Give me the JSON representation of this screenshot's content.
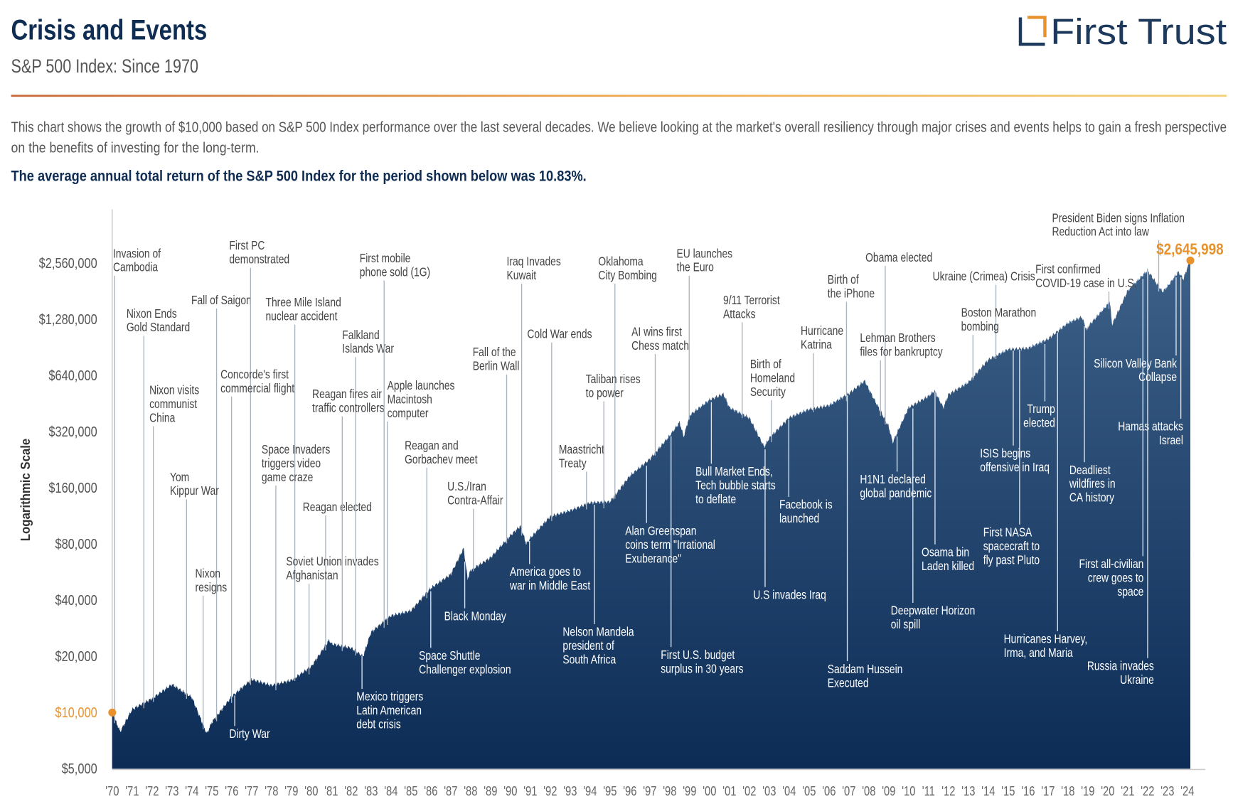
{
  "header": {
    "title": "Crisis and Events",
    "subtitle": "S&P 500 Index: Since 1970",
    "description_lines": [
      "This chart shows the growth of $10,000 based on S&P 500 Index performance over the last several decades. We believe looking at the market's overall resiliency through major crises and events helps to gain a fresh perspective",
      "on the benefits of investing for the long-term."
    ],
    "highlight": "The average annual total return of the S&P 500 Index for the period shown below was 10.83%.",
    "logo_text": "First Trust"
  },
  "colors": {
    "navy": "#0f2d52",
    "area_top": "#3d6189",
    "area_bottom": "#0c2c56",
    "accent_orange": "#e8922e",
    "text_gray": "#555555"
  },
  "chart_data": {
    "type": "area",
    "title": "Crisis and Events",
    "ylabel": "Logarithmic Scale",
    "yscale": "log",
    "ylim": [
      5000,
      2645998
    ],
    "y_ticks": [
      5000,
      10000,
      20000,
      40000,
      80000,
      160000,
      320000,
      640000,
      1280000,
      2560000
    ],
    "y_tick_labels": [
      "$5,000",
      "$10,000",
      "$20,000",
      "$40,000",
      "$80,000",
      "$160,000",
      "$320,000",
      "$640,000",
      "$1,280,000",
      "$2,560,000"
    ],
    "x_tick_labels": [
      "'70",
      "'71",
      "'72",
      "'73",
      "'74",
      "'75",
      "'76",
      "'77",
      "'78",
      "'79",
      "'80",
      "'81",
      "'82",
      "'83",
      "'84",
      "'85",
      "'86",
      "'87",
      "'88",
      "'89",
      "'90",
      "'91",
      "'92",
      "'93",
      "'94",
      "'95",
      "'96",
      "'97",
      "'98",
      "'99",
      "'00",
      "'01",
      "'02",
      "'03",
      "'04",
      "'05",
      "'06",
      "'07",
      "'08",
      "'09",
      "'10",
      "'11",
      "'12",
      "'13",
      "'14",
      "'15",
      "'16",
      "'17",
      "'18",
      "'19",
      "'20",
      "'21",
      "'22",
      "'23",
      "'24"
    ],
    "grid": false,
    "start_label": "$10,000",
    "end_label": "$2,645,998",
    "points": [
      [
        1970.0,
        10000
      ],
      [
        1970.4,
        7900
      ],
      [
        1971.0,
        10400
      ],
      [
        1972.0,
        11887
      ],
      [
        1973.0,
        14146
      ],
      [
        1974.0,
        12066
      ],
      [
        1974.75,
        7700
      ],
      [
        1975.0,
        8869
      ],
      [
        1976.0,
        12168
      ],
      [
        1977.0,
        15064
      ],
      [
        1978.0,
        13979
      ],
      [
        1979.0,
        14902
      ],
      [
        1980.0,
        17644
      ],
      [
        1980.9,
        24500
      ],
      [
        1981.0,
        23361
      ],
      [
        1982.0,
        22216
      ],
      [
        1982.6,
        20000
      ],
      [
        1983.0,
        26971
      ],
      [
        1984.0,
        33039
      ],
      [
        1985.0,
        35121
      ],
      [
        1986.0,
        46430
      ],
      [
        1987.0,
        55020
      ],
      [
        1987.65,
        76000
      ],
      [
        1987.85,
        52000
      ],
      [
        1988.0,
        57881
      ],
      [
        1989.0,
        67605
      ],
      [
        1990.0,
        88900
      ],
      [
        1990.5,
        100000
      ],
      [
        1990.8,
        80000
      ],
      [
        1991.0,
        86144
      ],
      [
        1992.0,
        112418
      ],
      [
        1993.0,
        120962
      ],
      [
        1994.0,
        133179
      ],
      [
        1995.0,
        134910
      ],
      [
        1996.0,
        185636
      ],
      [
        1997.0,
        228332
      ],
      [
        1998.0,
        304595
      ],
      [
        1998.5,
        360000
      ],
      [
        1998.7,
        300000
      ],
      [
        1999.0,
        391709
      ],
      [
        2000.0,
        473968
      ],
      [
        2000.7,
        510000
      ],
      [
        2001.0,
        430837
      ],
      [
        2002.0,
        379567
      ],
      [
        2002.75,
        265000
      ],
      [
        2003.0,
        295683
      ],
      [
        2004.0,
        380544
      ],
      [
        2005.0,
        422023
      ],
      [
        2006.0,
        442702
      ],
      [
        2007.0,
        512649
      ],
      [
        2007.8,
        600000
      ],
      [
        2008.0,
        540845
      ],
      [
        2009.0,
        340732
      ],
      [
        2009.2,
        280000
      ],
      [
        2010.0,
        431026
      ],
      [
        2011.0,
        496111
      ],
      [
        2011.3,
        530000
      ],
      [
        2011.75,
        430000
      ],
      [
        2012.0,
        506529
      ],
      [
        2013.0,
        587574
      ],
      [
        2014.0,
        777948
      ],
      [
        2015.0,
        884527
      ],
      [
        2016.0,
        896910
      ],
      [
        2017.0,
        1004539
      ],
      [
        2018.0,
        1223528
      ],
      [
        2018.7,
        1320000
      ],
      [
        2018.98,
        1100000
      ],
      [
        2019.0,
        1169693
      ],
      [
        2020.0,
        1538146
      ],
      [
        2020.1,
        1600000
      ],
      [
        2020.22,
        1200000
      ],
      [
        2021.0,
        1821165
      ],
      [
        2022.0,
        2343840
      ],
      [
        2022.75,
        1800000
      ],
      [
        2023.0,
        1919605
      ],
      [
        2023.55,
        2300000
      ],
      [
        2023.8,
        2100000
      ],
      [
        2024.0,
        2424461
      ],
      [
        2024.15,
        2645998
      ]
    ],
    "annotations": [
      {
        "lines": [
          "Invasion of",
          "Cambodia"
        ],
        "date": 1970.33
      },
      {
        "lines": [
          "Nixon Ends",
          "Gold Standard"
        ],
        "date": 1971.62
      },
      {
        "lines": [
          "Fall of Saigon"
        ],
        "date": 1975.33
      },
      {
        "lines": [
          "Nixon visits",
          "communist",
          "China"
        ],
        "date": 1972.14
      },
      {
        "lines": [
          "Yom",
          "Kippur War"
        ],
        "date": 1973.77
      },
      {
        "lines": [
          "Nixon",
          "resigns"
        ],
        "date": 1974.6
      },
      {
        "lines": [
          "First PC",
          "demonstrated"
        ],
        "date": 1976.9
      },
      {
        "lines": [
          "Concorde's first",
          "commercial flight"
        ],
        "date": 1976.05
      },
      {
        "lines": [
          "Three Mile Island",
          "nuclear accident"
        ],
        "date": 1979.24
      },
      {
        "lines": [
          "Space Invaders",
          "triggers video",
          "game craze"
        ],
        "date": 1978.5
      },
      {
        "lines": [
          "Reagan elected"
        ],
        "date": 1980.85
      },
      {
        "lines": [
          "Soviet Union invades",
          "Afghanistan"
        ],
        "date": 1979.98
      },
      {
        "lines": [
          "Falkland",
          "Islands War"
        ],
        "date": 1982.25
      },
      {
        "lines": [
          "Reagan fires air",
          "traffic controllers"
        ],
        "date": 1981.6
      },
      {
        "lines": [
          "First mobile",
          "phone sold (1G)"
        ],
        "date": 1983.8
      },
      {
        "lines": [
          "Apple launches",
          "Macintosh",
          "computer"
        ],
        "date": 1984.07
      },
      {
        "lines": [
          "Reagan and",
          "Gorbachev meet"
        ],
        "date": 1985.88
      },
      {
        "lines": [
          "U.S./Iran",
          "Contra-Affair"
        ],
        "date": 1986.9
      },
      {
        "lines": [
          "Fall of the",
          "Berlin Wall"
        ],
        "date": 1989.86
      },
      {
        "lines": [
          "Iraq Invades",
          "Kuwait"
        ],
        "date": 1990.59
      },
      {
        "lines": [
          "Cold War ends"
        ],
        "date": 1991.98
      },
      {
        "lines": [
          "Maastricht",
          "Treaty"
        ],
        "date": 1993.84
      },
      {
        "lines": [
          "Oklahoma",
          "City Bombing"
        ],
        "date": 1995.3
      },
      {
        "lines": [
          "Taliban rises",
          "to power"
        ],
        "date": 1996.7
      },
      {
        "lines": [
          "AI wins first",
          "Chess match"
        ],
        "date": 1997.35
      },
      {
        "lines": [
          "EU launches",
          "the Euro"
        ],
        "date": 1999.0
      },
      {
        "lines": [
          "9/11 Terrorist",
          "Attacks"
        ],
        "date": 2001.7
      },
      {
        "lines": [
          "Birth of",
          "Homeland",
          "Security"
        ],
        "date": 2002.9
      },
      {
        "lines": [
          "Hurricane",
          "Katrina"
        ],
        "date": 2005.66
      },
      {
        "lines": [
          "Birth of",
          "the iPhone"
        ],
        "date": 2007.05
      },
      {
        "lines": [
          "Obama elected"
        ],
        "date": 2008.85
      },
      {
        "lines": [
          "Lehman Brothers",
          "files for bankruptcy"
        ],
        "date": 2008.7
      },
      {
        "lines": [
          "Ukraine (Crimea) Crisis"
        ],
        "date": 2014.15
      },
      {
        "lines": [
          "Boston Marathon",
          "bombing"
        ],
        "date": 2013.3
      },
      {
        "lines": [
          "First confirmed",
          "COVID-19 case in U.S."
        ],
        "date": 2020.05
      },
      {
        "lines": [
          "President Biden signs Inflation",
          "Reduction Act into law"
        ],
        "date": 2022.62
      },
      {
        "lines": [
          "Dirty War"
        ],
        "date": 1976.2
      },
      {
        "lines": [
          "Mexico triggers",
          "Latin American",
          "debt crisis"
        ],
        "date": 1982.6
      },
      {
        "lines": [
          "Space Shuttle",
          "Challenger explosion"
        ],
        "date": 1986.08
      },
      {
        "lines": [
          "Black Monday"
        ],
        "date": 1987.8
      },
      {
        "lines": [
          "America goes to",
          "war in Middle East"
        ],
        "date": 1991.05
      },
      {
        "lines": [
          "Nelson Mandela",
          "president of",
          "South Africa"
        ],
        "date": 1994.36
      },
      {
        "lines": [
          "Alan Greenspan",
          "coins term \"Irrational",
          "Exuberance\""
        ],
        "date": 1996.93
      },
      {
        "lines": [
          "First U.S. budget",
          "surplus in 30 years"
        ],
        "date": 1998.75
      },
      {
        "lines": [
          "Bull Market Ends,",
          "Tech bubble starts",
          "to deflate"
        ],
        "date": 2000.2
      },
      {
        "lines": [
          "Facebook is",
          "launched"
        ],
        "date": 2004.1
      },
      {
        "lines": [
          "U.S invades Iraq"
        ],
        "date": 2003.22
      },
      {
        "lines": [
          "H1N1 declared",
          "global pandemic"
        ],
        "date": 2009.45
      },
      {
        "lines": [
          "Saddam Hussein",
          "Executed"
        ],
        "date": 2006.99
      },
      {
        "lines": [
          "Deepwater Horizon",
          "oil spill"
        ],
        "date": 2010.3
      },
      {
        "lines": [
          "Osama bin",
          "Laden killed"
        ],
        "date": 2011.34
      },
      {
        "lines": [
          "ISIS begins",
          "offensive in Iraq"
        ],
        "date": 2014.45
      },
      {
        "lines": [
          "First NASA",
          "spacecraft to",
          "fly past Pluto"
        ],
        "date": 2015.53
      },
      {
        "lines": [
          "Trump",
          "elected"
        ],
        "date": 2016.85
      },
      {
        "lines": [
          "Hurricanes Harvey,",
          "Irma, and Maria"
        ],
        "date": 2017.7
      },
      {
        "lines": [
          "Deadliest",
          "wildfires in",
          "CA history"
        ],
        "date": 2018.86
      },
      {
        "lines": [
          "Silicon Valley Bank",
          "Collapse"
        ],
        "date": 2023.19
      },
      {
        "lines": [
          "Hamas attacks",
          "Israel"
        ],
        "date": 2023.77
      },
      {
        "lines": [
          "First all-civilian",
          "crew goes to",
          "space"
        ],
        "date": 2021.7
      },
      {
        "lines": [
          "Russia invades",
          "Ukraine"
        ],
        "date": 2022.15
      }
    ]
  }
}
